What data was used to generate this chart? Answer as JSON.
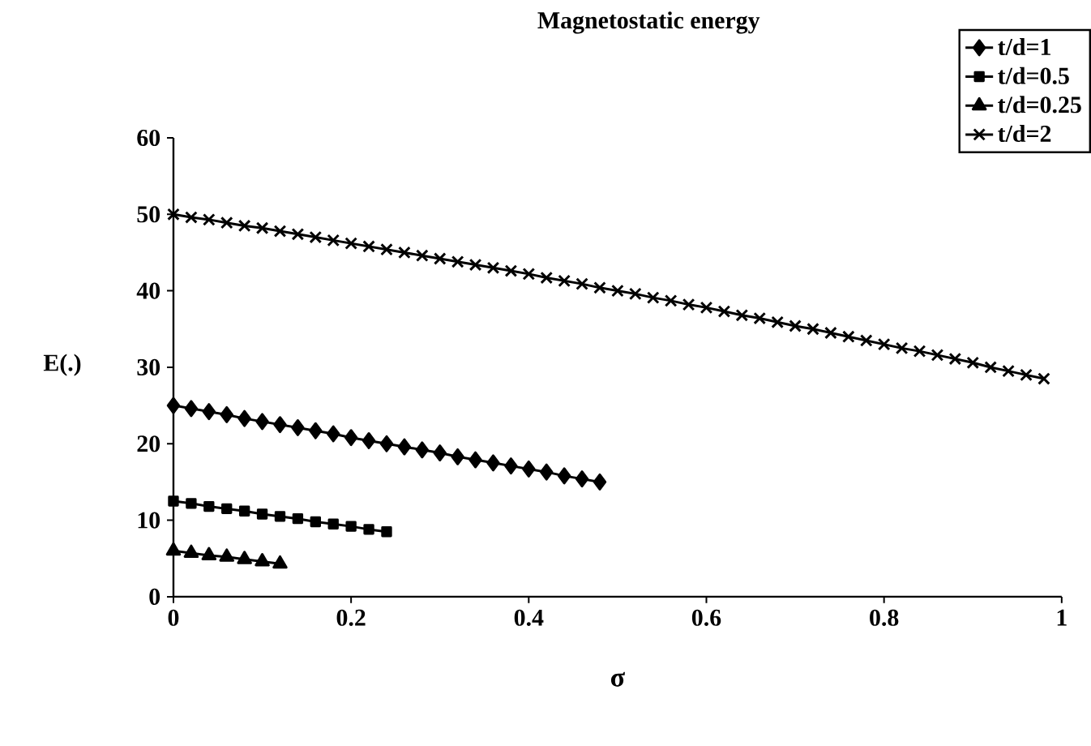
{
  "chart_data": {
    "type": "line",
    "title": "Magnetostatic energy",
    "xlabel": "σ",
    "ylabel": "E(.)",
    "xlim": [
      0,
      1
    ],
    "ylim": [
      0,
      60
    ],
    "xticks": [
      0,
      0.2,
      0.4,
      0.6,
      0.8,
      1
    ],
    "yticks": [
      0,
      10,
      20,
      30,
      40,
      50,
      60
    ],
    "legend": "top right",
    "line_style": "solid",
    "grid": false,
    "series": [
      {
        "name": "t/d=1",
        "color": "#000000",
        "marker": "diamond",
        "x": [
          0,
          0.02,
          0.04,
          0.06,
          0.08,
          0.1,
          0.12,
          0.14,
          0.16,
          0.18,
          0.2,
          0.22,
          0.24,
          0.26,
          0.28,
          0.3,
          0.32,
          0.34,
          0.36,
          0.38,
          0.4,
          0.42,
          0.44,
          0.46,
          0.48
        ],
        "values": [
          25.0,
          24.6,
          24.2,
          23.8,
          23.3,
          22.9,
          22.5,
          22.1,
          21.7,
          21.3,
          20.8,
          20.4,
          20.0,
          19.6,
          19.2,
          18.8,
          18.3,
          17.9,
          17.5,
          17.1,
          16.7,
          16.3,
          15.8,
          15.4,
          15.0
        ]
      },
      {
        "name": "t/d=0.5",
        "color": "#000000",
        "marker": "square",
        "x": [
          0,
          0.02,
          0.04,
          0.06,
          0.08,
          0.1,
          0.12,
          0.14,
          0.16,
          0.18,
          0.2,
          0.22,
          0.24
        ],
        "values": [
          12.5,
          12.2,
          11.8,
          11.5,
          11.2,
          10.8,
          10.5,
          10.2,
          9.8,
          9.5,
          9.2,
          8.8,
          8.5
        ]
      },
      {
        "name": "t/d=0.25",
        "color": "#000000",
        "marker": "triangle",
        "x": [
          0,
          0.02,
          0.04,
          0.06,
          0.08,
          0.1,
          0.12
        ],
        "values": [
          6.0,
          5.7,
          5.4,
          5.2,
          4.9,
          4.6,
          4.3
        ]
      },
      {
        "name": "t/d=2",
        "color": "#000000",
        "marker": "cross",
        "x": [
          0,
          0.02,
          0.04,
          0.06,
          0.08,
          0.1,
          0.12,
          0.14,
          0.16,
          0.18,
          0.2,
          0.22,
          0.24,
          0.26,
          0.28,
          0.3,
          0.32,
          0.34,
          0.36,
          0.38,
          0.4,
          0.42,
          0.44,
          0.46,
          0.48,
          0.5,
          0.52,
          0.54,
          0.56,
          0.58,
          0.6,
          0.62,
          0.64,
          0.66,
          0.68,
          0.7,
          0.72,
          0.74,
          0.76,
          0.78,
          0.8,
          0.82,
          0.84,
          0.86,
          0.88,
          0.9,
          0.92,
          0.94,
          0.96,
          0.98
        ],
        "values": [
          50.0,
          49.6,
          49.3,
          48.9,
          48.5,
          48.2,
          47.8,
          47.4,
          47.0,
          46.6,
          46.2,
          45.8,
          45.4,
          45.0,
          44.6,
          44.2,
          43.8,
          43.4,
          43.0,
          42.6,
          42.2,
          41.7,
          41.3,
          40.9,
          40.4,
          40.0,
          39.6,
          39.1,
          38.7,
          38.2,
          37.8,
          37.3,
          36.8,
          36.4,
          35.9,
          35.4,
          35.0,
          34.5,
          34.0,
          33.5,
          33.0,
          32.5,
          32.1,
          31.6,
          31.1,
          30.6,
          30.0,
          29.5,
          29.0,
          28.5
        ]
      }
    ]
  }
}
